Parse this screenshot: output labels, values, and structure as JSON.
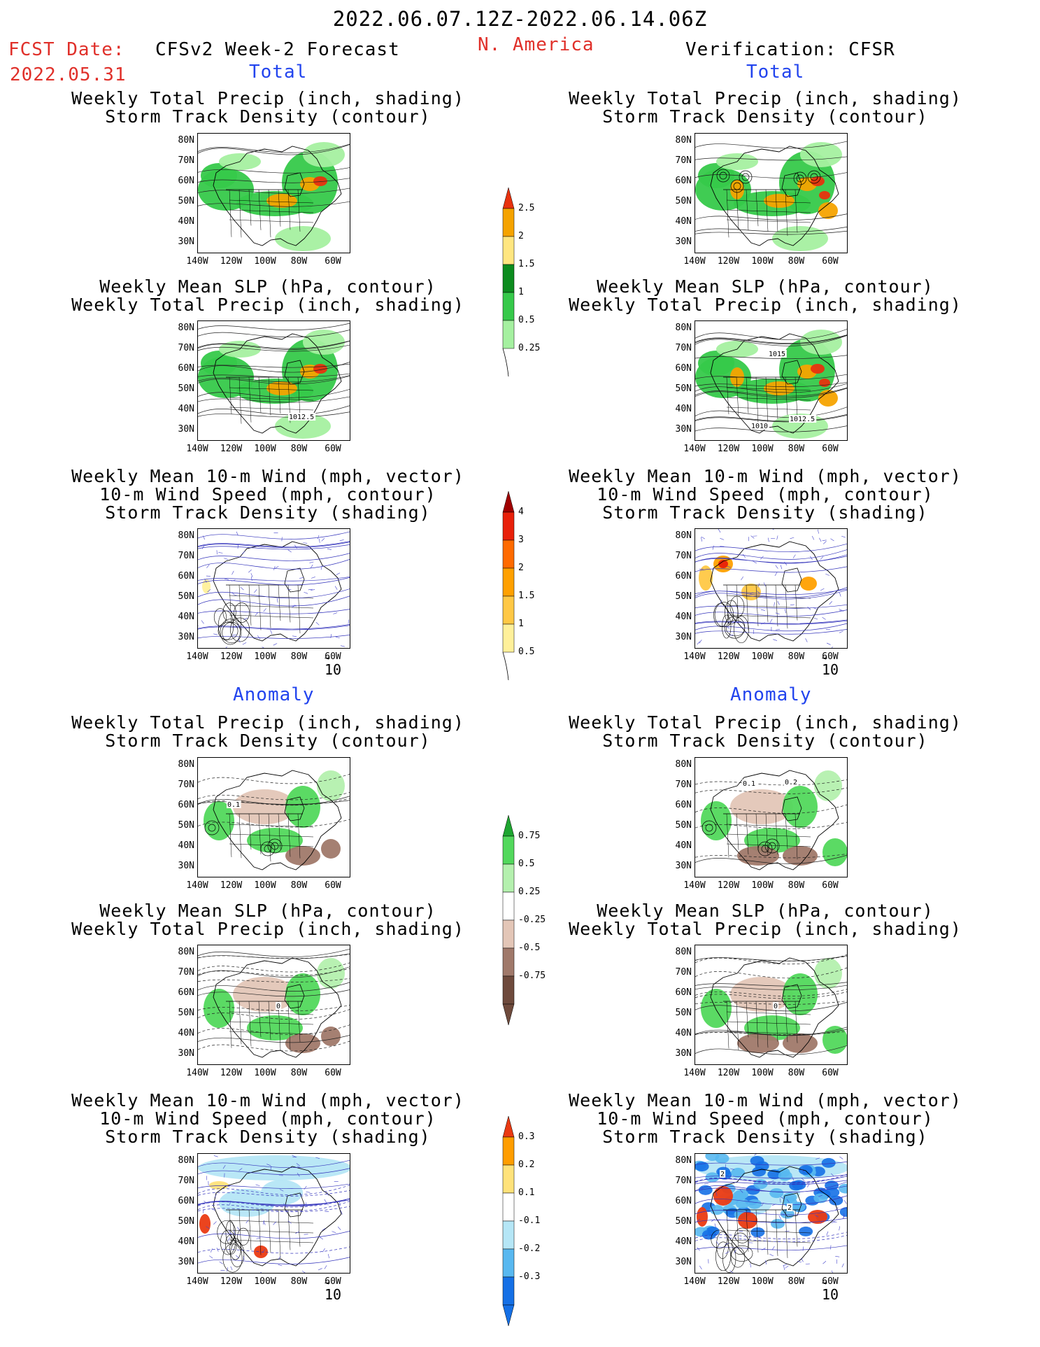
{
  "header": {
    "date_range": "2022.06.07.12Z-2022.06.14.06Z",
    "fcst_label": "FCST Date:",
    "fcst_date": "2022.05.31",
    "left_title": "CFSv2 Week-2 Forecast",
    "region": "N. America",
    "right_title": "Verification: CFSR"
  },
  "sections": {
    "total": "Total",
    "anomaly": "Anomaly"
  },
  "panel_titles": {
    "precip_storm": [
      "Weekly Total Precip (inch, shading)",
      "Storm Track Density (contour)"
    ],
    "slp_precip": [
      "Weekly Mean SLP (hPa, contour)",
      "Weekly Total Precip (inch, shading)"
    ],
    "wind_storm": [
      "Weekly Mean 10-m Wind (mph, vector)",
      "10-m Wind Speed (mph, contour)",
      "Storm Track Density (shading)"
    ]
  },
  "axes": {
    "lat_labels": [
      "80N",
      "70N",
      "60N",
      "50N",
      "40N",
      "30N"
    ],
    "lon_labels": [
      "140W",
      "120W",
      "100W",
      "80W",
      "60W"
    ]
  },
  "vector_ref": "10",
  "map_labels": {
    "slp_fcst": "1012.5",
    "slp_verif": [
      "1015",
      "1010",
      "1012.5"
    ],
    "anom_fcst_storm": "0.1",
    "anom_verif_storm": [
      "0.1",
      "0.2"
    ],
    "anom_slp": "0",
    "wind_anom_verif": [
      "2",
      "2"
    ]
  },
  "colorbars": {
    "precip_total": {
      "labels": [
        "2.5",
        "2",
        "1.5",
        "1",
        "0.5",
        "0.25"
      ],
      "colors": [
        "#e8320e",
        "#f5a300",
        "#ffe680",
        "#0c8c1e",
        "#36c94a",
        "#a5f0a0"
      ]
    },
    "storm_total": {
      "labels": [
        "4",
        "3",
        "2",
        "1.5",
        "1",
        "0.5"
      ],
      "colors": [
        "#a00000",
        "#e8200a",
        "#ff6a00",
        "#ffa000",
        "#ffc845",
        "#fff09a"
      ]
    },
    "precip_anom": {
      "labels": [
        "0.75",
        "0.5",
        "0.25",
        "-0.25",
        "-0.5",
        "-0.75"
      ],
      "colors": [
        "#1ea530",
        "#52d85c",
        "#b4f0ae",
        "#ffffff",
        "#e3c6b7",
        "#a0796a",
        "#6e4a3c"
      ]
    },
    "storm_anom": {
      "labels": [
        "0.3",
        "0.2",
        "0.1",
        "-0.1",
        "-0.2",
        "-0.3"
      ],
      "colors": [
        "#ea3a12",
        "#ff9d00",
        "#ffe27a",
        "#ffffff",
        "#b5e6f6",
        "#58b8f0",
        "#1570e6"
      ]
    }
  }
}
